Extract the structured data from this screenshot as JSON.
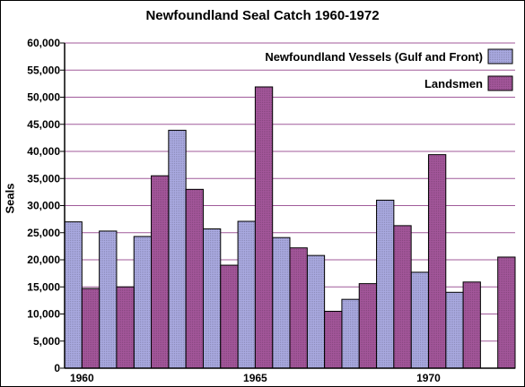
{
  "chart_data": {
    "type": "bar",
    "title": "Newfoundland Seal Catch 1960-1972",
    "xlabel": "",
    "ylabel": "Seals",
    "ylim": [
      0,
      60000
    ],
    "yticks": [
      "0",
      "5,000",
      "10,000",
      "15,000",
      "20,000",
      "25,000",
      "30,000",
      "35,000",
      "40,000",
      "45,000",
      "50,000",
      "55,000",
      "60,000"
    ],
    "xtick_labels": [
      "1960",
      "1965",
      "1970"
    ],
    "categories": [
      "1960",
      "1961",
      "1962",
      "1963",
      "1964",
      "1965",
      "1966",
      "1967",
      "1968",
      "1969",
      "1970",
      "1971",
      "1972"
    ],
    "series": [
      {
        "name": "Newfoundland Vessels (Gulf and Front)",
        "color": "#a9a9e0",
        "values": [
          27000,
          25300,
          24300,
          43900,
          25700,
          27100,
          24100,
          20800,
          12700,
          31000,
          17700,
          14000,
          0
        ]
      },
      {
        "name": "Landsmen",
        "color": "#a3569a",
        "values": [
          14700,
          15000,
          35500,
          33000,
          19000,
          51900,
          22200,
          10500,
          15600,
          26300,
          39400,
          15900,
          20500
        ]
      }
    ],
    "legend": "top-right",
    "grid": true
  }
}
